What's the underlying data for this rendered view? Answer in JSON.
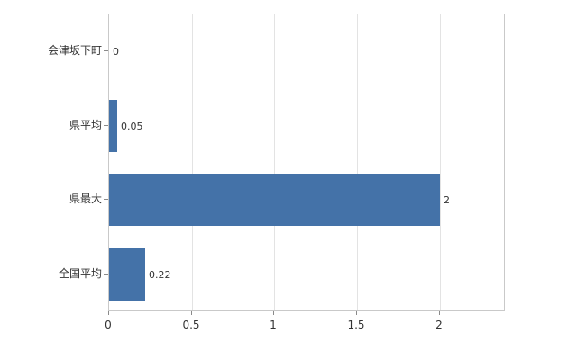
{
  "chart_data": {
    "type": "bar",
    "orientation": "horizontal",
    "title": "",
    "xlabel": "",
    "ylabel": "",
    "categories": [
      "会津坂下町",
      "県平均",
      "県最大",
      "全国平均"
    ],
    "values": [
      0,
      0.05,
      2,
      0.22
    ],
    "value_labels": [
      "0",
      "0.05",
      "2",
      "0.22"
    ],
    "x_ticks": [
      0,
      0.5,
      1,
      1.5,
      2
    ],
    "x_tick_labels": [
      "0",
      "0.5",
      "1",
      "1.5",
      "2"
    ],
    "xlim": [
      0,
      2.4
    ],
    "grid": true,
    "legend": false,
    "bar_color": "#4472a8",
    "grid_color": "#e3e3e3",
    "frame_color": "#c9c9c9",
    "text_color": "#333333"
  }
}
